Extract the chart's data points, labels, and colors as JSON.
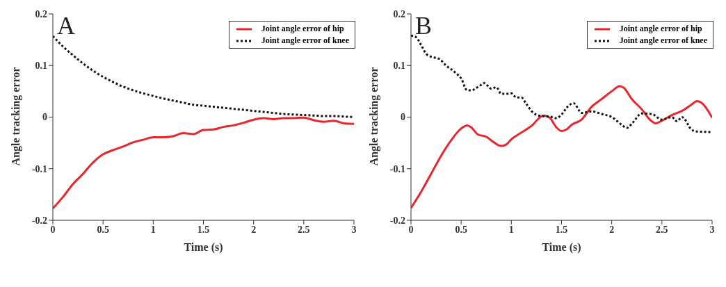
{
  "chart_data": [
    {
      "type": "line",
      "annotations": [
        "A"
      ],
      "xlabel": "Time (s)",
      "ylabel": "Angle tracking error",
      "xlim": [
        0,
        3
      ],
      "xticks": [
        0,
        0.5,
        1,
        1.5,
        2,
        2.5,
        3
      ],
      "ylim": [
        -0.2,
        0.2
      ],
      "yticks": [
        -0.2,
        -0.1,
        0,
        0.1,
        0.2
      ],
      "grid": false,
      "legend": "top right",
      "marker": "none",
      "series": [
        {
          "name": "Joint angle error of hip",
          "color": "#e8262b",
          "line_style": "solid",
          "x": [
            0,
            0.1,
            0.2,
            0.3,
            0.4,
            0.5,
            0.6,
            0.7,
            0.8,
            0.9,
            1,
            1.1,
            1.2,
            1.3,
            1.4,
            1.5,
            1.6,
            1.7,
            1.8,
            1.9,
            2,
            2.1,
            2.2,
            2.3,
            2.4,
            2.5,
            2.6,
            2.7,
            2.8,
            2.9,
            3
          ],
          "values": [
            -0.177,
            -0.155,
            -0.13,
            -0.11,
            -0.088,
            -0.072,
            -0.064,
            -0.057,
            -0.049,
            -0.044,
            -0.039,
            -0.039,
            -0.037,
            -0.031,
            -0.033,
            -0.025,
            -0.024,
            -0.019,
            -0.016,
            -0.011,
            -0.005,
            -0.002,
            -0.004,
            -0.002,
            -0.002,
            -0.001,
            -0.006,
            -0.009,
            -0.007,
            -0.012,
            -0.013
          ]
        },
        {
          "name": "Joint angle error of knee",
          "color": "#111111",
          "line_style": "dotted",
          "x": [
            0,
            0.1,
            0.2,
            0.3,
            0.4,
            0.5,
            0.6,
            0.7,
            0.8,
            0.9,
            1,
            1.1,
            1.2,
            1.3,
            1.4,
            1.5,
            1.6,
            1.7,
            1.8,
            1.9,
            2,
            2.1,
            2.2,
            2.3,
            2.4,
            2.5,
            2.6,
            2.7,
            2.8,
            2.9,
            3
          ],
          "values": [
            0.157,
            0.137,
            0.12,
            0.104,
            0.09,
            0.078,
            0.068,
            0.059,
            0.052,
            0.046,
            0.041,
            0.036,
            0.032,
            0.028,
            0.024,
            0.022,
            0.02,
            0.018,
            0.016,
            0.014,
            0.012,
            0.01,
            0.008,
            0.006,
            0.005,
            0.004,
            0.003,
            0.002,
            0.002,
            0.001,
            0
          ]
        }
      ]
    },
    {
      "type": "line",
      "annotations": [
        "B"
      ],
      "xlabel": "Time (s)",
      "ylabel": "Angle tracking error",
      "xlim": [
        0,
        3
      ],
      "xticks": [
        0,
        0.5,
        1,
        1.5,
        2,
        2.5,
        3
      ],
      "ylim": [
        -0.2,
        0.2
      ],
      "yticks": [
        -0.2,
        -0.1,
        0,
        0.1,
        0.2
      ],
      "grid": false,
      "legend": "top right",
      "marker": "none",
      "series": [
        {
          "name": "Joint angle error of hip",
          "color": "#e8262b",
          "line_style": "solid",
          "x": [
            0,
            0.1,
            0.2,
            0.3,
            0.4,
            0.5,
            0.56,
            0.6,
            0.67,
            0.75,
            0.82,
            0.9,
            0.95,
            1,
            1.1,
            1.2,
            1.32,
            1.38,
            1.45,
            1.5,
            1.55,
            1.6,
            1.7,
            1.8,
            1.9,
            2,
            2.08,
            2.12,
            2.2,
            2.3,
            2.38,
            2.44,
            2.5,
            2.6,
            2.7,
            2.8,
            2.85,
            2.9,
            3
          ],
          "values": [
            -0.176,
            -0.145,
            -0.11,
            -0.075,
            -0.045,
            -0.022,
            -0.016,
            -0.02,
            -0.034,
            -0.038,
            -0.048,
            -0.056,
            -0.053,
            -0.043,
            -0.03,
            -0.017,
            0.003,
            -0.001,
            -0.02,
            -0.027,
            -0.024,
            -0.015,
            -0.005,
            0.02,
            0.035,
            0.05,
            0.06,
            0.057,
            0.035,
            0.015,
            -0.005,
            -0.012,
            -0.007,
            0.004,
            0.012,
            0.025,
            0.031,
            0.027,
            -0.001
          ]
        },
        {
          "name": "Joint angle error of knee",
          "color": "#111111",
          "line_style": "dotted",
          "x": [
            0,
            0.05,
            0.1,
            0.15,
            0.2,
            0.28,
            0.35,
            0.45,
            0.5,
            0.56,
            0.6,
            0.68,
            0.73,
            0.8,
            0.85,
            0.9,
            0.95,
            1,
            1.05,
            1.1,
            1.15,
            1.22,
            1.3,
            1.38,
            1.45,
            1.5,
            1.57,
            1.62,
            1.7,
            1.8,
            1.9,
            2,
            2.1,
            2.15,
            2.2,
            2.3,
            2.4,
            2.5,
            2.6,
            2.65,
            2.7,
            2.8,
            2.85,
            3
          ],
          "values": [
            0.158,
            0.155,
            0.14,
            0.123,
            0.117,
            0.113,
            0.1,
            0.085,
            0.075,
            0.052,
            0.052,
            0.06,
            0.066,
            0.055,
            0.058,
            0.045,
            0.045,
            0.046,
            0.038,
            0.038,
            0.025,
            0.008,
            0.002,
            0.001,
            -0.002,
            0.005,
            0.022,
            0.027,
            0.008,
            0.011,
            0.006,
            0,
            -0.015,
            -0.021,
            -0.013,
            0.007,
            0.006,
            -0.005,
            0,
            -0.008,
            0,
            -0.025,
            -0.028,
            -0.029
          ]
        }
      ]
    }
  ]
}
